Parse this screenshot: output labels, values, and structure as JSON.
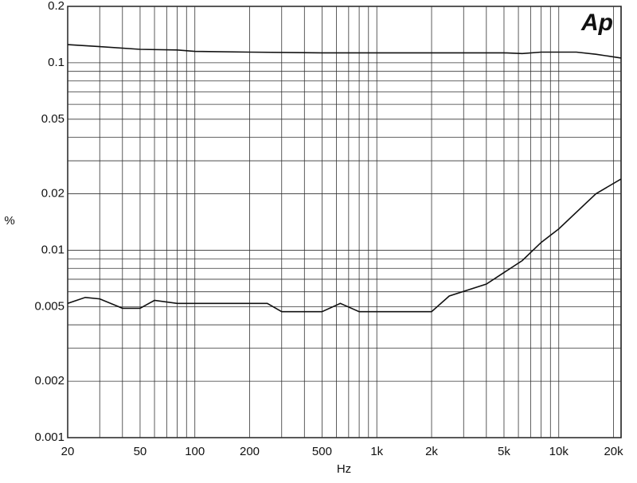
{
  "chart_data": {
    "type": "line",
    "logo": "Ap",
    "x_label": "Hz",
    "y_label": "%",
    "xscale": "log",
    "yscale": "log",
    "grid": true,
    "xlim": [
      20,
      22000
    ],
    "ylim": [
      0.001,
      0.2
    ],
    "xticks": [
      20,
      50,
      100,
      200,
      500,
      {
        "value": 1000,
        "label": "1k"
      },
      {
        "value": 2000,
        "label": "2k"
      },
      {
        "value": 5000,
        "label": "5k"
      },
      {
        "value": 10000,
        "label": "10k"
      },
      {
        "value": 20000,
        "label": "20k"
      }
    ],
    "yticks": [
      0.001,
      0.002,
      0.005,
      0.01,
      0.02,
      0.05,
      0.1,
      0.2
    ],
    "x_minor_ticks": [
      30,
      40,
      60,
      70,
      80,
      90,
      300,
      400,
      600,
      700,
      800,
      900,
      3000,
      4000,
      6000,
      7000,
      8000,
      9000
    ],
    "y_minor_ticks": [
      0.003,
      0.004,
      0.006,
      0.007,
      0.008,
      0.009,
      0.03,
      0.04,
      0.06,
      0.07,
      0.08,
      0.09
    ],
    "series": [
      {
        "color": "#111111",
        "x": [
          20,
          30,
          50,
          80,
          100,
          200,
          500,
          1000,
          2000,
          5000,
          6300,
          8000,
          10000,
          12500,
          16000,
          22000
        ],
        "values": [
          0.125,
          0.122,
          0.118,
          0.117,
          0.115,
          0.114,
          0.113,
          0.113,
          0.113,
          0.113,
          0.112,
          0.114,
          0.114,
          0.114,
          0.111,
          0.106
        ]
      },
      {
        "color": "#111111",
        "x": [
          20,
          25,
          30,
          40,
          50,
          60,
          80,
          100,
          250,
          300,
          500,
          630,
          800,
          2000,
          2500,
          4000,
          6300,
          8000,
          10000,
          16000,
          22000
        ],
        "values": [
          0.0052,
          0.0056,
          0.0055,
          0.0049,
          0.0049,
          0.0054,
          0.0052,
          0.0052,
          0.0052,
          0.0047,
          0.0047,
          0.0052,
          0.0047,
          0.0047,
          0.0057,
          0.0066,
          0.0088,
          0.011,
          0.013,
          0.02,
          0.024
        ]
      }
    ]
  }
}
